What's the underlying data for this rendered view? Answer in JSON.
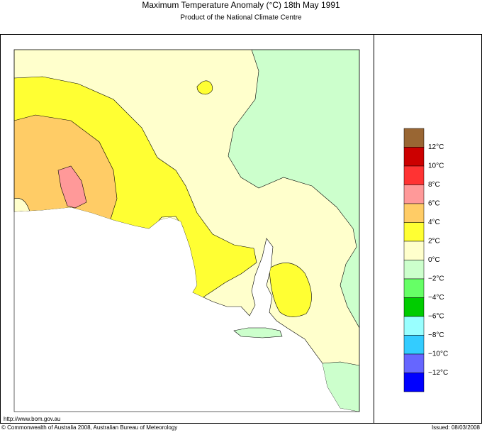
{
  "header": {
    "title": "Maximum Temperature Anomaly (°C)  18th May 1991",
    "subtitle": "Product of the National Climate Centre"
  },
  "legend": {
    "colors": [
      "#996633",
      "#cc0000",
      "#ff3333",
      "#ff9999",
      "#ffcc66",
      "#ffff33",
      "#ffffcc",
      "#ccffcc",
      "#66ff66",
      "#00cc00",
      "#99ffff",
      "#33ccff",
      "#6666ff",
      "#0000ff"
    ],
    "labels": [
      "12°C",
      "10°C",
      "8°C",
      "6°C",
      "4°C",
      "2°C",
      "0°C",
      "−2°C",
      "−4°C",
      "−6°C",
      "−8°C",
      "−10°C",
      "−12°C"
    ]
  },
  "footer": {
    "url": "http://www.bom.gov.au",
    "copyright": "© Commonwealth of Australia 2008, Australian Bureau of Meteorology",
    "issued": "Issued: 08/03/2008"
  }
}
